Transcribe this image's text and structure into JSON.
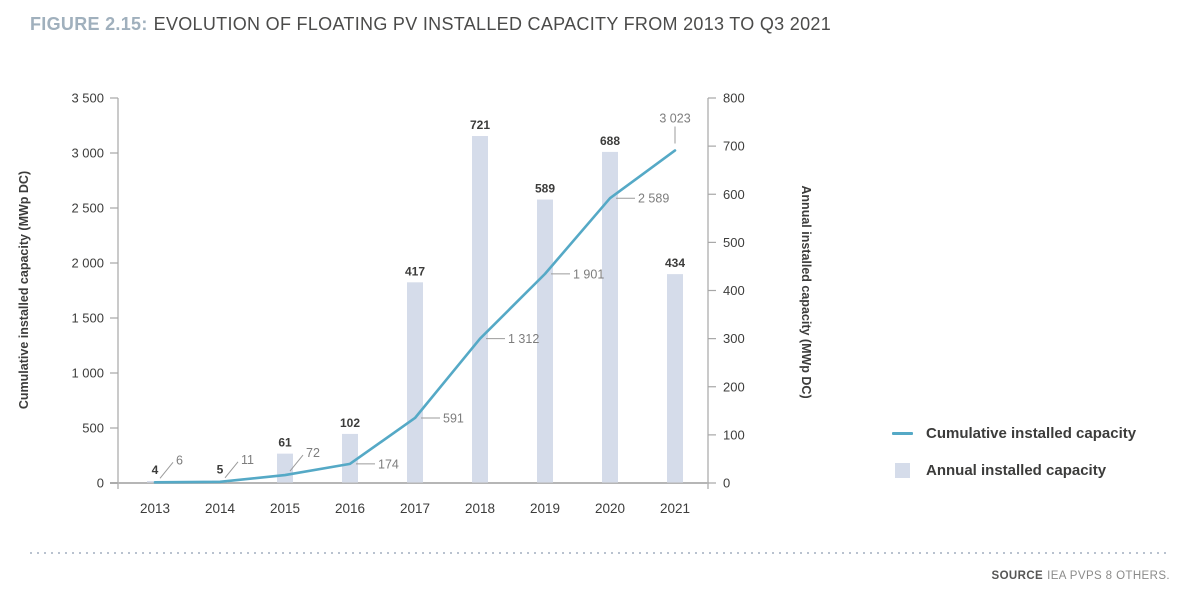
{
  "header": {
    "figure_label": "FIGURE 2.15:",
    "title": "EVOLUTION OF FLOATING PV INSTALLED CAPACITY FROM 2013 TO Q3 2021"
  },
  "chart_data": {
    "type": "combo-bar-line",
    "categories": [
      "2013",
      "2014",
      "2015",
      "2016",
      "2017",
      "2018",
      "2019",
      "2020",
      "2021"
    ],
    "series": [
      {
        "name": "Cumulative installed capacity",
        "type": "line",
        "axis": "left",
        "color": "#55a9c6",
        "values": [
          6,
          11,
          72,
          174,
          591,
          1312,
          1901,
          2589,
          3023
        ],
        "labels": [
          "6",
          "11",
          "72",
          "174",
          "591",
          "1 312",
          "1 901",
          "2 589",
          "3 023"
        ]
      },
      {
        "name": "Annual installed capacity",
        "type": "bar",
        "axis": "right",
        "color": "#d5dcea",
        "values": [
          4,
          5,
          61,
          102,
          417,
          721,
          589,
          688,
          434
        ],
        "labels": [
          "4",
          "5",
          "61",
          "102",
          "417",
          "721",
          "589",
          "688",
          "434"
        ]
      }
    ],
    "left_axis": {
      "title": "Cumulative installed capacity (MWp DC)",
      "min": 0,
      "max": 3500,
      "tick_step": 500,
      "ticks": [
        "0",
        "500",
        "1 000",
        "1 500",
        "2 000",
        "2 500",
        "3 000",
        "3 500"
      ]
    },
    "right_axis": {
      "title": "Annual installed capacity (MWp DC)",
      "min": 0,
      "max": 800,
      "tick_step": 100,
      "ticks": [
        "0",
        "100",
        "200",
        "300",
        "400",
        "500",
        "600",
        "700",
        "800"
      ]
    },
    "grid": false,
    "legend_position": "right"
  },
  "legend": {
    "items": [
      {
        "label": "Cumulative installed capacity",
        "swatch": "line",
        "color": "#55a9c6"
      },
      {
        "label": "Annual installed capacity",
        "swatch": "square",
        "color": "#d5dcea"
      }
    ]
  },
  "footer": {
    "source_label": "SOURCE",
    "source_text": "IEA PVPS 8 OTHERS."
  }
}
